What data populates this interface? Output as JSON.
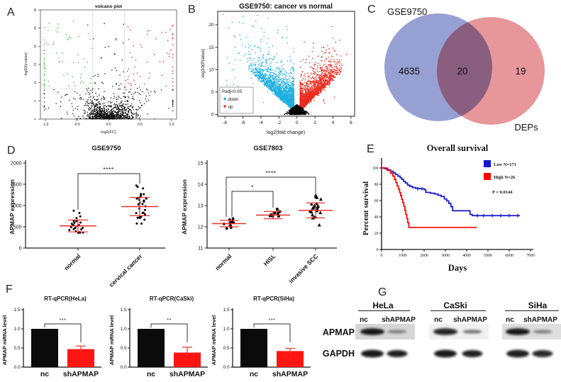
{
  "panels": {
    "a": {
      "letter": "A"
    },
    "b": {
      "letter": "B"
    },
    "c": {
      "letter": "C"
    },
    "d": {
      "letter": "D"
    },
    "e": {
      "letter": "E"
    },
    "f": {
      "letter": "F"
    },
    "g": {
      "letter": "G"
    }
  },
  "chart_data": [
    {
      "id": "panel-a",
      "type": "scatter",
      "subtype": "volcano",
      "title": "volcano plot",
      "xlabel": "log2(FC)",
      "ylabel": "-log10(p-value)",
      "xticks": [
        "-1.0",
        "-0.5",
        "0.0",
        "0.5",
        "1.0"
      ],
      "yticks": [
        "0",
        "5",
        "10",
        "15",
        "20",
        "25",
        "30"
      ],
      "xlim": [
        -1.08,
        1.08
      ],
      "ylim": [
        0,
        30
      ],
      "thresholds": {
        "x": [
          -0.25,
          0.25
        ],
        "y": 8.5
      },
      "colors": {
        "up": "#cc2020",
        "down": "#2eb82e",
        "ns": "#111111"
      },
      "point_counts": {
        "center": 1000,
        "sprinkle": 130,
        "left_edge": 32,
        "right_edge": 28
      }
    },
    {
      "id": "panel-b",
      "type": "scatter",
      "subtype": "volcano",
      "title": "GSE9750: cancer vs normal",
      "xlabel": "log2(fold change)",
      "ylabel": "-log10(Pvalue)",
      "xticks": [
        "-8",
        "-6",
        "-4",
        "-2",
        "0",
        "2",
        "4",
        "6"
      ],
      "yticks": [
        "0",
        "5",
        "10",
        "15",
        "20"
      ],
      "xlim": [
        -8.8,
        6.4
      ],
      "ylim": [
        -0.4,
        23
      ],
      "legend": {
        "title": "Padj<0.05",
        "items": [
          {
            "label": "down",
            "color": "#1fb0e0"
          },
          {
            "label": "up",
            "color": "#ec2c20"
          }
        ]
      },
      "colors": {
        "down": "#1fb0e0",
        "up": "#ec2c20",
        "ns": "#000000"
      },
      "point_counts": {
        "down": 2000,
        "up": 1800,
        "ns": 850
      },
      "highlight_points": {
        "down": [
          [
            -8.2,
            22.3
          ],
          [
            -6.0,
            21.9
          ],
          [
            -4.4,
            22.1
          ]
        ],
        "up": [
          [
            5.5,
            13.4
          ],
          [
            3.9,
            19.6
          ],
          [
            4.3,
            16.1
          ]
        ]
      }
    },
    {
      "id": "panel-c",
      "type": "venn",
      "left_label": "GSE9750",
      "right_label": "DEPs",
      "left_only": 4635,
      "overlap": 20,
      "right_only": 19,
      "colors": {
        "left": "#7a85c5",
        "right": "#e0797e"
      }
    },
    {
      "id": "panel-d1",
      "type": "scatter",
      "subtype": "dotplot",
      "title": "GSE9750",
      "ylabel": "APMAP expression",
      "yticks": [
        "0",
        "500",
        "1000",
        "1500",
        "2000"
      ],
      "ylim": [
        0,
        2000
      ],
      "err_color": "#e8312f",
      "groups": [
        {
          "label": "normal",
          "marker": "circle",
          "n": 22,
          "mean": 520,
          "err_low": 380,
          "err_high": 660,
          "outliers": [
            825,
            880
          ]
        },
        {
          "label": "cervical cancer",
          "marker": "circle",
          "n": 30,
          "mean": 975,
          "err_low": 760,
          "err_high": 1190,
          "outliers": [
            1440,
            1470
          ]
        }
      ],
      "comparisons": [
        {
          "from": 0,
          "to": 1,
          "stars": "****"
        }
      ]
    },
    {
      "id": "panel-d2",
      "type": "scatter",
      "subtype": "dotplot",
      "title": "GSE7803",
      "ylabel": "APMAP expression",
      "yticks": [
        "11",
        "12",
        "13",
        "14",
        "15"
      ],
      "ylim": [
        11,
        15
      ],
      "err_color": "#e8312f",
      "groups": [
        {
          "label": "normal",
          "marker": "circle",
          "n": 9,
          "mean": 12.15,
          "err_low": 12.0,
          "err_high": 12.3,
          "outliers": [
            11.92
          ]
        },
        {
          "label": "HISL",
          "marker": "square",
          "n": 8,
          "mean": 12.55,
          "err_low": 12.38,
          "err_high": 12.72,
          "outliers": []
        },
        {
          "label": "invasive SCC",
          "marker": "triangle",
          "n": 19,
          "mean": 12.77,
          "err_low": 12.42,
          "err_high": 13.12,
          "outliers": [
            13.48,
            12.08
          ]
        }
      ],
      "comparisons": [
        {
          "from": 0,
          "to": 1,
          "stars": "*"
        },
        {
          "from": 0,
          "to": 2,
          "stars": "****"
        }
      ]
    },
    {
      "id": "panel-e",
      "type": "line",
      "subtype": "kaplan-meier",
      "title": "Overall survival",
      "xlabel": "Days",
      "ylabel": "Percent survival",
      "xticks": [
        "0",
        "1000",
        "2000",
        "3000",
        "4000",
        "5000",
        "6000",
        "7000"
      ],
      "yticks": [
        "0",
        "20",
        "40",
        "60",
        "80",
        "100"
      ],
      "xlim": [
        0,
        7000
      ],
      "ylim": [
        0,
        100
      ],
      "pvalue": "P = 0.0144",
      "series": [
        {
          "name": "Low N=171",
          "color": "#1414cc",
          "steps": [
            [
              0,
              100
            ],
            [
              150,
              99
            ],
            [
              300,
              97.5
            ],
            [
              430,
              96
            ],
            [
              550,
              94
            ],
            [
              650,
              92
            ],
            [
              760,
              90
            ],
            [
              870,
              88
            ],
            [
              950,
              86
            ],
            [
              1030,
              83.5
            ],
            [
              1120,
              81.5
            ],
            [
              1220,
              79
            ],
            [
              1320,
              77.5
            ],
            [
              1450,
              76
            ],
            [
              1600,
              75
            ],
            [
              1800,
              74.5
            ],
            [
              2000,
              73.5
            ],
            [
              2080,
              70
            ],
            [
              2300,
              69
            ],
            [
              2500,
              68
            ],
            [
              2650,
              66.5
            ],
            [
              2800,
              65
            ],
            [
              2950,
              62
            ],
            [
              3060,
              59.5
            ],
            [
              3160,
              56.5
            ],
            [
              3260,
              52.5
            ],
            [
              3340,
              47.5
            ],
            [
              4080,
              47.5
            ],
            [
              4160,
              43
            ],
            [
              4260,
              41.5
            ],
            [
              6500,
              41.5
            ]
          ],
          "censor_marks": [
            [
              1700,
              74.5
            ],
            [
              1900,
              74.5
            ],
            [
              4500,
              41.5
            ],
            [
              4800,
              41.5
            ],
            [
              5200,
              41.5
            ],
            [
              5600,
              41.5
            ],
            [
              6000,
              41.5
            ],
            [
              6400,
              41.5
            ]
          ]
        },
        {
          "name": "High N=26",
          "color": "#ff0000",
          "steps": [
            [
              0,
              100
            ],
            [
              260,
              97
            ],
            [
              420,
              93.5
            ],
            [
              530,
              90
            ],
            [
              610,
              86
            ],
            [
              670,
              82
            ],
            [
              730,
              78
            ],
            [
              790,
              74
            ],
            [
              845,
              70
            ],
            [
              895,
              66
            ],
            [
              945,
              61.5
            ],
            [
              995,
              57.5
            ],
            [
              1045,
              53
            ],
            [
              1095,
              48
            ],
            [
              1140,
              43
            ],
            [
              1185,
              38
            ],
            [
              1230,
              33
            ],
            [
              1280,
              27
            ],
            [
              4480,
              27
            ]
          ],
          "censor_marks": []
        }
      ]
    },
    {
      "id": "panel-f",
      "type": "bar",
      "error_color": "#e8413c",
      "subplots": [
        {
          "title": "RT-qPCR(HeLa)",
          "ylabel": "APMAP mRNA level",
          "yticks": [
            "0.0",
            "0.5",
            "1.0",
            "1.5"
          ],
          "ylim": [
            0,
            1.5
          ],
          "categories": [
            "nc",
            "shAPMAP"
          ],
          "values": [
            1.0,
            0.47
          ],
          "errors": [
            0,
            0.08
          ],
          "colors": [
            "#0b0b0b",
            "#ff1511"
          ],
          "stars": "***"
        },
        {
          "title": "RT-qPCR(CaSki)",
          "ylabel": "APMAP mRNA level",
          "yticks": [
            "0.0",
            "0.5",
            "1.0",
            "1.5"
          ],
          "ylim": [
            0,
            1.5
          ],
          "categories": [
            "nc",
            "shAPMAP"
          ],
          "values": [
            1.0,
            0.38
          ],
          "errors": [
            0,
            0.14
          ],
          "colors": [
            "#0b0b0b",
            "#ff1511"
          ],
          "stars": "**"
        },
        {
          "title": "RT-qPCR(SiHa)",
          "ylabel": "APMAP mRNA level",
          "yticks": [
            "0.0",
            "0.5",
            "1.0",
            "1.5"
          ],
          "ylim": [
            0,
            1.5
          ],
          "categories": [
            "nc",
            "shAPMAP"
          ],
          "values": [
            1.0,
            0.42
          ],
          "errors": [
            0,
            0.07
          ],
          "colors": [
            "#0b0b0b",
            "#ff1511"
          ],
          "stars": "***"
        }
      ]
    },
    {
      "id": "panel-g",
      "type": "blot",
      "row_labels": [
        "APMAP",
        "GAPDH"
      ],
      "groups": [
        {
          "name": "HeLa",
          "lanes": [
            "nc",
            "shAPMAP"
          ],
          "bands": {
            "APMAP": [
              0.95,
              0.4
            ],
            "GAPDH": [
              0.95,
              0.92
            ]
          },
          "bg": "#d6d6d6"
        },
        {
          "name": "CaSki",
          "lanes": [
            "nc",
            "shAPMAP"
          ],
          "bands": {
            "APMAP": [
              0.9,
              0.52
            ],
            "GAPDH": [
              0.95,
              0.92
            ]
          },
          "bg": "#f0f0f0"
        },
        {
          "name": "SiHa",
          "lanes": [
            "nc",
            "shAPMAP"
          ],
          "bands": {
            "APMAP": [
              0.95,
              0.42
            ],
            "GAPDH": [
              0.92,
              0.88
            ]
          },
          "bg": "#dedede"
        }
      ]
    }
  ]
}
